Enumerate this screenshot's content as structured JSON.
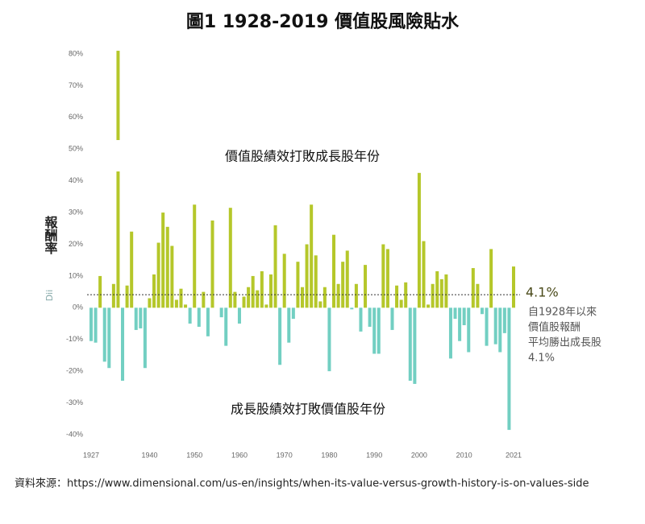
{
  "chart_data": {
    "type": "bar",
    "title": "圖1  1928-2019 價值股風險貼水",
    "y_label": "報酬率",
    "watermark": "Dii",
    "above_label": "價值股績效打敗成長股年份",
    "below_label": "成長股績效打敗價值股年份",
    "average": 4.1,
    "average_label": "4.1%",
    "average_note": [
      "自1928年以來",
      "價值股報酬",
      "平均勝出成長股",
      "4.1%"
    ],
    "source": "資料來源：https://www.dimensional.com/us-en/insights/when-its-value-versus-growth-history-is-on-values-side",
    "positive_color": "#b5c72a",
    "negative_color": "#72cfc2",
    "x": [
      1927,
      1928,
      1929,
      1930,
      1931,
      1932,
      1933,
      1934,
      1935,
      1936,
      1937,
      1938,
      1939,
      1940,
      1941,
      1942,
      1943,
      1944,
      1945,
      1946,
      1947,
      1948,
      1949,
      1950,
      1951,
      1952,
      1953,
      1954,
      1955,
      1956,
      1957,
      1958,
      1959,
      1960,
      1961,
      1962,
      1963,
      1964,
      1965,
      1966,
      1967,
      1968,
      1969,
      1970,
      1971,
      1972,
      1973,
      1974,
      1975,
      1976,
      1977,
      1978,
      1979,
      1980,
      1981,
      1982,
      1983,
      1984,
      1985,
      1986,
      1987,
      1988,
      1989,
      1990,
      1991,
      1992,
      1993,
      1994,
      1995,
      1996,
      1997,
      1998,
      1999,
      2000,
      2001,
      2002,
      2003,
      2004,
      2005,
      2006,
      2007,
      2008,
      2009,
      2010,
      2011,
      2012,
      2013,
      2014,
      2015,
      2016,
      2017,
      2018,
      2019,
      2020,
      2021
    ],
    "values": [
      -10.5,
      -11,
      10,
      -17,
      -19,
      7.5,
      81,
      -23,
      7,
      24,
      -7,
      -6.5,
      -19,
      3,
      10.5,
      20.5,
      30,
      25.5,
      19.5,
      2.5,
      6,
      1,
      -5,
      32.5,
      -6,
      5,
      -9,
      27.5,
      0,
      -3,
      -12,
      31.5,
      5,
      -5,
      3.5,
      6.5,
      10,
      5.5,
      11.5,
      1,
      10.5,
      26,
      -18,
      17,
      -11,
      -3.5,
      14.5,
      6.5,
      20,
      32.5,
      16.5,
      2,
      6.5,
      -20,
      23,
      7.5,
      14.5,
      18,
      -0.5,
      7.5,
      -7.5,
      13.5,
      -6,
      -14.5,
      -14.5,
      20,
      18.5,
      -7,
      7,
      2.5,
      8,
      -23,
      -24,
      42.5,
      21,
      1,
      7.5,
      11.5,
      9,
      10.5,
      -16,
      -3.5,
      -10.5,
      -5.5,
      -14,
      12.5,
      7.5,
      -2,
      -12,
      18.5,
      -11.5,
      -14,
      -8,
      -38.5,
      13
    ],
    "xlim": [
      1927,
      2021
    ],
    "xticks": [
      1927,
      1940,
      1950,
      1960,
      1970,
      1980,
      1990,
      2000,
      2010,
      2021
    ],
    "ylim": [
      -40,
      80
    ],
    "yticks": [
      {
        "value": -40,
        "label": "-40%"
      },
      {
        "value": -30,
        "label": "-30%"
      },
      {
        "value": -20,
        "label": "-20%"
      },
      {
        "value": -10,
        "label": "-10%"
      },
      {
        "value": 0,
        "label": "0%"
      },
      {
        "value": 10,
        "label": "10%"
      },
      {
        "value": 20,
        "label": "20%"
      },
      {
        "value": 30,
        "label": "30%"
      },
      {
        "value": 40,
        "label": "40%"
      },
      {
        "value": 50,
        "label": "50%"
      },
      {
        "value": 60,
        "label": "60%"
      },
      {
        "value": 70,
        "label": "70%"
      },
      {
        "value": 80,
        "label": "80%"
      }
    ]
  }
}
